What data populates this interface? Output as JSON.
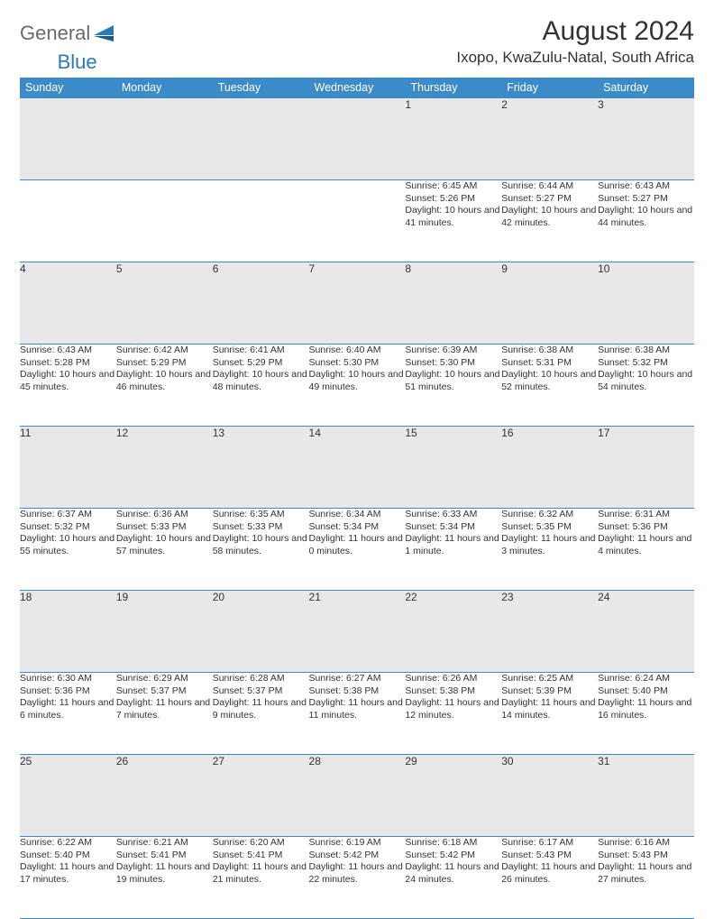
{
  "logo": {
    "word1": "General",
    "word2": "Blue"
  },
  "title": "August 2024",
  "location": "Ixopo, KwaZulu-Natal, South Africa",
  "colors": {
    "header_bg": "#3b8bc9",
    "header_text": "#ffffff",
    "daynum_bg": "#e8e8e8",
    "border": "#3b8bc9",
    "text": "#333333",
    "logo_gray": "#6a6a6a",
    "logo_blue": "#2a7ab9"
  },
  "weekdays": [
    "Sunday",
    "Monday",
    "Tuesday",
    "Wednesday",
    "Thursday",
    "Friday",
    "Saturday"
  ],
  "weeks": [
    {
      "nums": [
        "",
        "",
        "",
        "",
        "1",
        "2",
        "3"
      ],
      "details": [
        "",
        "",
        "",
        "",
        "Sunrise: 6:45 AM\nSunset: 5:26 PM\nDaylight: 10 hours and 41 minutes.",
        "Sunrise: 6:44 AM\nSunset: 5:27 PM\nDaylight: 10 hours and 42 minutes.",
        "Sunrise: 6:43 AM\nSunset: 5:27 PM\nDaylight: 10 hours and 44 minutes."
      ]
    },
    {
      "nums": [
        "4",
        "5",
        "6",
        "7",
        "8",
        "9",
        "10"
      ],
      "details": [
        "Sunrise: 6:43 AM\nSunset: 5:28 PM\nDaylight: 10 hours and 45 minutes.",
        "Sunrise: 6:42 AM\nSunset: 5:29 PM\nDaylight: 10 hours and 46 minutes.",
        "Sunrise: 6:41 AM\nSunset: 5:29 PM\nDaylight: 10 hours and 48 minutes.",
        "Sunrise: 6:40 AM\nSunset: 5:30 PM\nDaylight: 10 hours and 49 minutes.",
        "Sunrise: 6:39 AM\nSunset: 5:30 PM\nDaylight: 10 hours and 51 minutes.",
        "Sunrise: 6:38 AM\nSunset: 5:31 PM\nDaylight: 10 hours and 52 minutes.",
        "Sunrise: 6:38 AM\nSunset: 5:32 PM\nDaylight: 10 hours and 54 minutes."
      ]
    },
    {
      "nums": [
        "11",
        "12",
        "13",
        "14",
        "15",
        "16",
        "17"
      ],
      "details": [
        "Sunrise: 6:37 AM\nSunset: 5:32 PM\nDaylight: 10 hours and 55 minutes.",
        "Sunrise: 6:36 AM\nSunset: 5:33 PM\nDaylight: 10 hours and 57 minutes.",
        "Sunrise: 6:35 AM\nSunset: 5:33 PM\nDaylight: 10 hours and 58 minutes.",
        "Sunrise: 6:34 AM\nSunset: 5:34 PM\nDaylight: 11 hours and 0 minutes.",
        "Sunrise: 6:33 AM\nSunset: 5:34 PM\nDaylight: 11 hours and 1 minute.",
        "Sunrise: 6:32 AM\nSunset: 5:35 PM\nDaylight: 11 hours and 3 minutes.",
        "Sunrise: 6:31 AM\nSunset: 5:36 PM\nDaylight: 11 hours and 4 minutes."
      ]
    },
    {
      "nums": [
        "18",
        "19",
        "20",
        "21",
        "22",
        "23",
        "24"
      ],
      "details": [
        "Sunrise: 6:30 AM\nSunset: 5:36 PM\nDaylight: 11 hours and 6 minutes.",
        "Sunrise: 6:29 AM\nSunset: 5:37 PM\nDaylight: 11 hours and 7 minutes.",
        "Sunrise: 6:28 AM\nSunset: 5:37 PM\nDaylight: 11 hours and 9 minutes.",
        "Sunrise: 6:27 AM\nSunset: 5:38 PM\nDaylight: 11 hours and 11 minutes.",
        "Sunrise: 6:26 AM\nSunset: 5:38 PM\nDaylight: 11 hours and 12 minutes.",
        "Sunrise: 6:25 AM\nSunset: 5:39 PM\nDaylight: 11 hours and 14 minutes.",
        "Sunrise: 6:24 AM\nSunset: 5:40 PM\nDaylight: 11 hours and 16 minutes."
      ]
    },
    {
      "nums": [
        "25",
        "26",
        "27",
        "28",
        "29",
        "30",
        "31"
      ],
      "details": [
        "Sunrise: 6:22 AM\nSunset: 5:40 PM\nDaylight: 11 hours and 17 minutes.",
        "Sunrise: 6:21 AM\nSunset: 5:41 PM\nDaylight: 11 hours and 19 minutes.",
        "Sunrise: 6:20 AM\nSunset: 5:41 PM\nDaylight: 11 hours and 21 minutes.",
        "Sunrise: 6:19 AM\nSunset: 5:42 PM\nDaylight: 11 hours and 22 minutes.",
        "Sunrise: 6:18 AM\nSunset: 5:42 PM\nDaylight: 11 hours and 24 minutes.",
        "Sunrise: 6:17 AM\nSunset: 5:43 PM\nDaylight: 11 hours and 26 minutes.",
        "Sunrise: 6:16 AM\nSunset: 5:43 PM\nDaylight: 11 hours and 27 minutes."
      ]
    }
  ]
}
